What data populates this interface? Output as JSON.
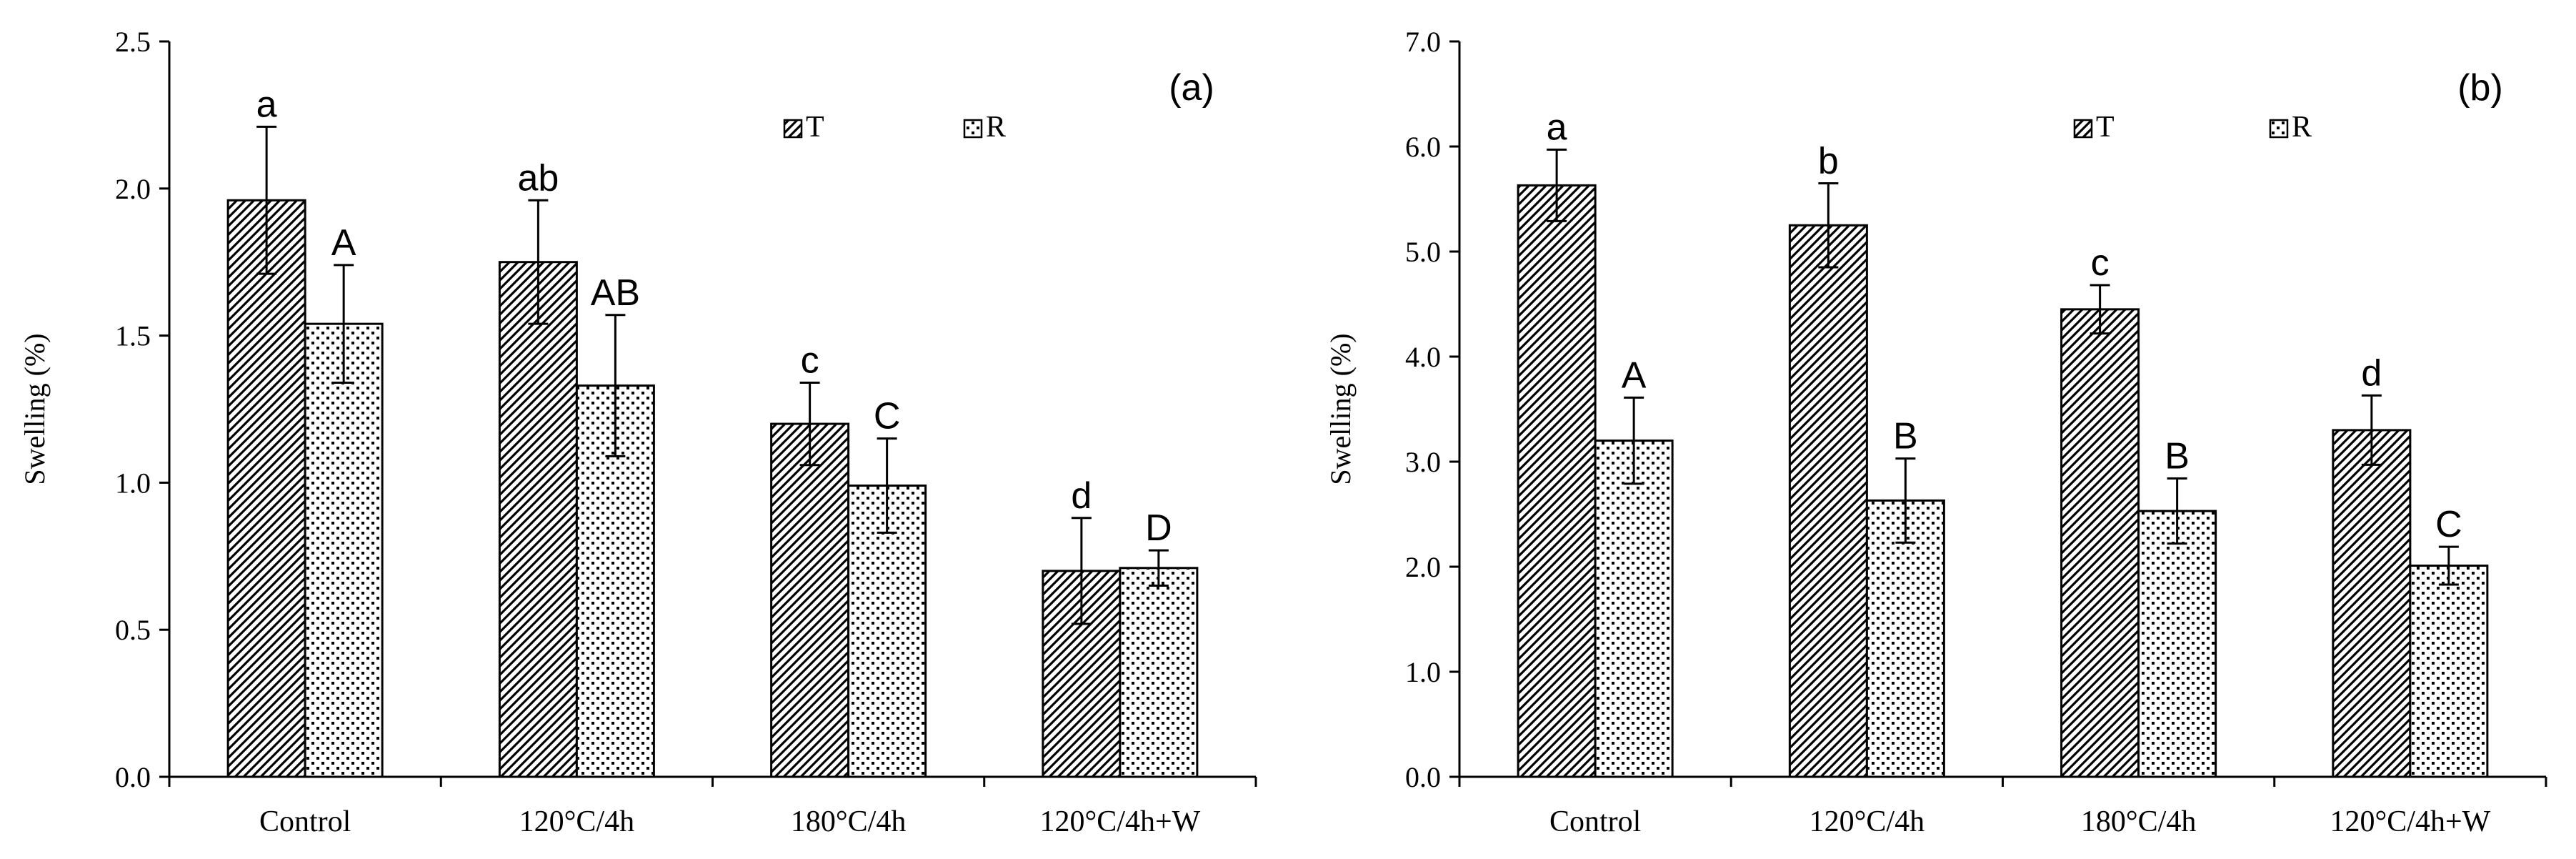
{
  "chart_data": [
    {
      "type": "bar",
      "panel": "(a)",
      "title": "",
      "xlabel": "",
      "ylabel": "Swelling  (%)",
      "ylim": [
        0,
        2.5
      ],
      "ytick_step": 0.5,
      "ytick_decimals": 1,
      "grid": false,
      "legend_position": "top-right",
      "categories": [
        "Control",
        "120°C/4h",
        "180°C/4h",
        "120°C/4h+W"
      ],
      "series": [
        {
          "name": "T",
          "pattern": "hatch",
          "values": [
            1.96,
            1.75,
            1.2,
            0.7
          ],
          "errors": [
            0.25,
            0.21,
            0.14,
            0.18
          ],
          "labels": [
            "a",
            "ab",
            "c",
            "d"
          ]
        },
        {
          "name": "R",
          "pattern": "dots",
          "values": [
            1.54,
            1.33,
            0.99,
            0.71
          ],
          "errors": [
            0.2,
            0.24,
            0.16,
            0.06
          ],
          "labels": [
            "A",
            "AB",
            "C",
            "D"
          ]
        }
      ]
    },
    {
      "type": "bar",
      "panel": "(b)",
      "title": "",
      "xlabel": "",
      "ylabel": "Swelling  (%)",
      "ylim": [
        0,
        7.0
      ],
      "ytick_step": 1.0,
      "ytick_decimals": 1,
      "grid": false,
      "legend_position": "top-right",
      "categories": [
        "Control",
        "120°C/4h",
        "180°C/4h",
        "120°C/4h+W"
      ],
      "series": [
        {
          "name": "T",
          "pattern": "hatch",
          "values": [
            5.63,
            5.25,
            4.45,
            3.3
          ],
          "errors": [
            0.34,
            0.4,
            0.23,
            0.33
          ],
          "labels": [
            "a",
            "b",
            "c",
            "d"
          ]
        },
        {
          "name": "R",
          "pattern": "dots",
          "values": [
            3.2,
            2.63,
            2.53,
            2.01
          ],
          "errors": [
            0.41,
            0.4,
            0.31,
            0.18
          ],
          "labels": [
            "A",
            "B",
            "B",
            "C"
          ]
        }
      ]
    }
  ]
}
